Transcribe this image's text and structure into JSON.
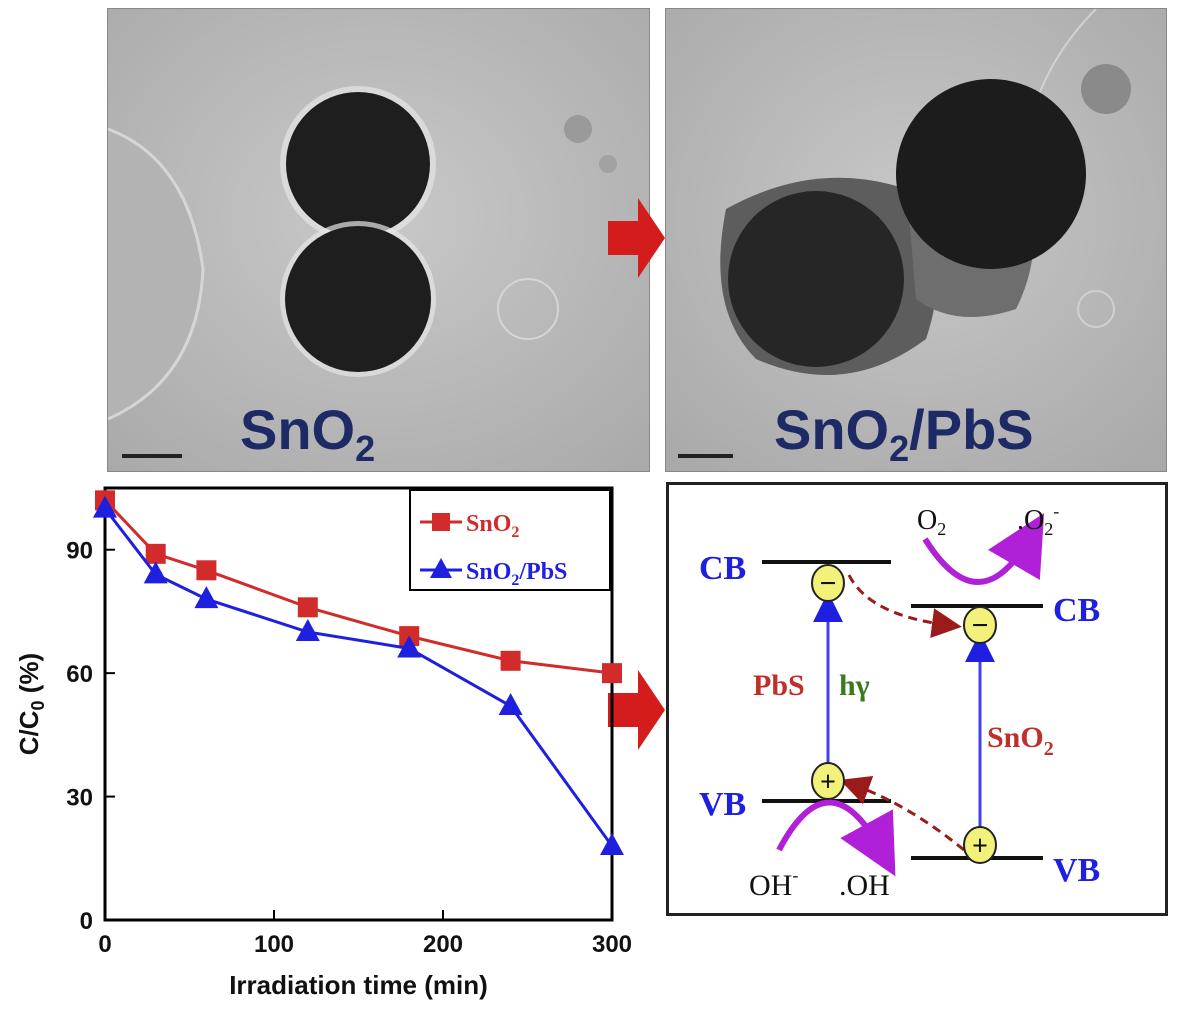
{
  "tem": {
    "left_label": "SnO",
    "left_sub": "2",
    "right_label_a": "SnO",
    "right_sub": "2",
    "right_label_b": "/PbS"
  },
  "chart_data": {
    "type": "line",
    "xlabel": "Irradiation time (min)",
    "ylabel": "C/C",
    "ylabel_sub": "0",
    "ylabel_unit": " (%)",
    "xlim": [
      0,
      300
    ],
    "ylim": [
      0,
      105
    ],
    "xticks": [
      0,
      100,
      200,
      300
    ],
    "yticks": [
      0,
      30,
      60,
      90
    ],
    "legend_position": "top-right",
    "series": [
      {
        "name": "SnO",
        "name_sub": "2",
        "name_rest": "",
        "color": "#d12b2b",
        "marker": "square",
        "x": [
          0,
          30,
          60,
          120,
          180,
          240,
          300
        ],
        "y": [
          102,
          89,
          85,
          76,
          69,
          63,
          60
        ]
      },
      {
        "name": "SnO",
        "name_sub": "2",
        "name_rest": "/PbS",
        "color": "#1f1fe0",
        "marker": "triangle",
        "x": [
          0,
          30,
          60,
          120,
          180,
          240,
          300
        ],
        "y": [
          100,
          84,
          78,
          70,
          66,
          52,
          18
        ]
      }
    ]
  },
  "scheme": {
    "pbs_cb": "CB",
    "pbs_vb": "VB",
    "sno2_cb": "CB",
    "sno2_vb": "VB",
    "pbs": "PbS",
    "hv": "hγ",
    "sno2": "SnO",
    "sno2_sub": "2",
    "o2": "O",
    "o2_sub": "2",
    "o2_rad": ".O",
    "o2_rad_sub": "2",
    "o2_rad_sup": "-",
    "oh_minus": "OH",
    "oh_minus_sup": "-",
    "oh_rad": ".OH",
    "electron": "−",
    "hole": "+"
  },
  "colors": {
    "red": "#d12b2b",
    "blue": "#1f1fe0",
    "navy": "#1d2a66",
    "magenta": "#b020d8",
    "dashed": "#9b1a1a",
    "green": "#3a7a1a",
    "yellow": "#f2f27a"
  }
}
